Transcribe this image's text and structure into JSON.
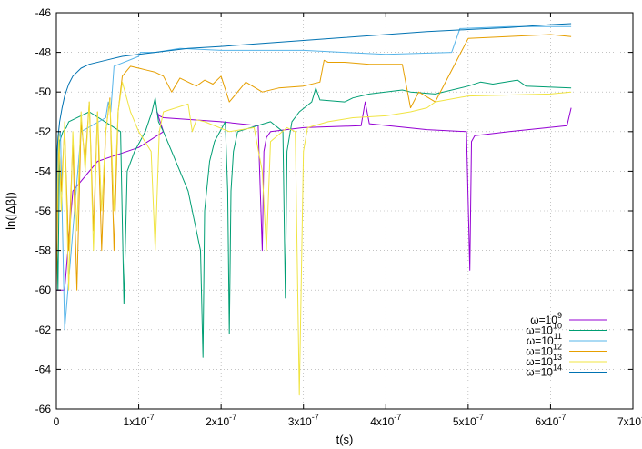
{
  "chart_data": {
    "type": "line",
    "xlabel": "t(s)",
    "ylabel": "ln(|Δβ|)",
    "xlim": [
      0,
      7e-07
    ],
    "ylim": [
      -66,
      -46
    ],
    "grid": true,
    "legend_position": "bottom-right",
    "xticks": [
      {
        "value": 0,
        "mant": "0",
        "exp": ""
      },
      {
        "value": 1e-07,
        "mant": "1x10",
        "exp": "-7"
      },
      {
        "value": 2e-07,
        "mant": "2x10",
        "exp": "-7"
      },
      {
        "value": 3e-07,
        "mant": "3x10",
        "exp": "-7"
      },
      {
        "value": 4e-07,
        "mant": "4x10",
        "exp": "-7"
      },
      {
        "value": 5e-07,
        "mant": "5x10",
        "exp": "-7"
      },
      {
        "value": 6e-07,
        "mant": "6x10",
        "exp": "-7"
      },
      {
        "value": 7e-07,
        "mant": "7x10",
        "exp": "-7"
      }
    ],
    "yticks": [
      {
        "value": -46,
        "label": "-46"
      },
      {
        "value": -48,
        "label": "-48"
      },
      {
        "value": -50,
        "label": "-50"
      },
      {
        "value": -52,
        "label": "-52"
      },
      {
        "value": -54,
        "label": "-54"
      },
      {
        "value": -56,
        "label": "-56"
      },
      {
        "value": -58,
        "label": "-58"
      },
      {
        "value": -60,
        "label": "-60"
      },
      {
        "value": -62,
        "label": "-62"
      },
      {
        "value": -64,
        "label": "-64"
      },
      {
        "value": -66,
        "label": "-66"
      }
    ],
    "series": [
      {
        "name_base": "ω=10",
        "name_exp": "9",
        "color": "#9400d3",
        "x": [
          0,
          1e-08,
          2e-08,
          5e-08,
          1e-07,
          1.3e-07,
          1.22e-07,
          1.25e-07,
          1.3e-07,
          2e-07,
          2.45e-07,
          2.5e-07,
          2.52e-07,
          2.55e-07,
          2.6e-07,
          3e-07,
          3.7e-07,
          3.75e-07,
          3.8e-07,
          4.5e-07,
          4.98e-07,
          5.02e-07,
          5.04e-07,
          5.08e-07,
          5.5e-07,
          6.2e-07,
          6.25e-07
        ],
        "y": [
          -60,
          -60,
          -55,
          -53.5,
          -52.8,
          -52,
          -51,
          -51.2,
          -51.3,
          -51.5,
          -51.7,
          -58,
          -53,
          -52.3,
          -52,
          -51.8,
          -51.7,
          -50.5,
          -51.6,
          -51.9,
          -52,
          -59,
          -52.5,
          -52.2,
          -52,
          -51.7,
          -50.8
        ]
      },
      {
        "name_base": "ω=10",
        "name_exp": "10",
        "color": "#009e73",
        "x": [
          0,
          2e-09,
          4e-09,
          8e-09,
          1.2e-08,
          1.5e-08,
          4e-08,
          7.8e-08,
          8.2e-08,
          8.6e-08,
          9.5e-08,
          1.08e-07,
          1.16e-07,
          1.2e-07,
          1.24e-07,
          1.3e-07,
          1.4e-07,
          1.6e-07,
          1.75e-07,
          1.78e-07,
          1.8e-07,
          1.86e-07,
          1.92e-07,
          2.05e-07,
          2.08e-07,
          2.1e-07,
          2.12e-07,
          2.15e-07,
          2.2e-07,
          2.6e-07,
          2.75e-07,
          2.78e-07,
          2.8e-07,
          2.86e-07,
          2.95e-07,
          3.1e-07,
          3.15e-07,
          3.2e-07,
          3.5e-07,
          3.6e-07,
          3.8e-07,
          4.2e-07,
          4.3e-07,
          4.6e-07,
          5e-07,
          5.15e-07,
          5.3e-07,
          5.6e-07,
          5.7e-07,
          6.25e-07
        ],
        "y": [
          -56,
          -60,
          -52.5,
          -52,
          -51.8,
          -51.5,
          -51,
          -52,
          -60.7,
          -54,
          -53,
          -52,
          -51,
          -50.3,
          -51.5,
          -52,
          -53,
          -55,
          -58,
          -63.4,
          -56,
          -53.5,
          -52.5,
          -51.5,
          -55,
          -62.2,
          -55,
          -53,
          -52,
          -51.5,
          -52,
          -60.4,
          -53,
          -51.5,
          -51,
          -50.5,
          -49.8,
          -50.4,
          -50.5,
          -50.3,
          -50.1,
          -49.9,
          -50,
          -50.1,
          -49.7,
          -49.5,
          -49.6,
          -49.4,
          -49.7,
          -49.8
        ]
      },
      {
        "name_base": "ω=10",
        "name_exp": "11",
        "color": "#56b4e9",
        "x": [
          0,
          2e-09,
          5e-09,
          1e-08,
          3e-08,
          6e-08,
          6.3e-08,
          6.6e-08,
          7e-08,
          1e-07,
          1.02e-07,
          1.2e-07,
          1.5e-07,
          2e-07,
          2.5e-07,
          3e-07,
          3.5e-07,
          4e-07,
          4.8e-07,
          4.9e-07,
          5.5e-07,
          6.25e-07
        ],
        "y": [
          -58,
          -52.5,
          -52,
          -62,
          -52,
          -51.3,
          -50.5,
          -51,
          -48.7,
          -48.2,
          -48,
          -48,
          -47.8,
          -47.9,
          -47.9,
          -47.9,
          -48,
          -48.1,
          -48,
          -46.8,
          -46.7,
          -46.7
        ]
      },
      {
        "name_base": "ω=10",
        "name_exp": "12",
        "color": "#e69f00",
        "x": [
          0,
          3e-09,
          6e-09,
          1e-08,
          1.5e-08,
          2e-08,
          2.5e-08,
          3e-08,
          3.5e-08,
          4e-08,
          4.5e-08,
          5e-08,
          5.5e-08,
          6e-08,
          6.5e-08,
          7e-08,
          7.5e-08,
          8e-08,
          9e-08,
          1e-07,
          1.1e-07,
          1.2e-07,
          1.3e-07,
          1.4e-07,
          1.5e-07,
          1.6e-07,
          1.7e-07,
          1.8e-07,
          1.9e-07,
          2e-07,
          2.1e-07,
          2.3e-07,
          2.5e-07,
          2.7e-07,
          3e-07,
          3.2e-07,
          3.25e-07,
          3.3e-07,
          3.5e-07,
          3.8e-07,
          4.2e-07,
          4.3e-07,
          4.4e-07,
          4.6e-07,
          5e-07,
          6e-07,
          6.25e-07
        ],
        "y": [
          -60,
          -52.5,
          -55,
          -51.8,
          -58,
          -52.5,
          -60,
          -51.5,
          -53.5,
          -50.5,
          -57,
          -51,
          -58,
          -52,
          -50.3,
          -58,
          -51,
          -49.2,
          -48.7,
          -48.8,
          -48.9,
          -49,
          -49.2,
          -50,
          -49.3,
          -49.5,
          -49.7,
          -49.4,
          -49.6,
          -49.2,
          -50.5,
          -49.5,
          -50,
          -49.8,
          -49.7,
          -49.5,
          -48.4,
          -48.5,
          -48.5,
          -48.6,
          -48.6,
          -50.8,
          -50,
          -50.5,
          -47.3,
          -47.1,
          -47.2
        ]
      },
      {
        "name_base": "ω=10",
        "name_exp": "13",
        "color": "#f0e442",
        "x": [
          0,
          3e-09,
          6e-09,
          1e-08,
          1.5e-08,
          2e-08,
          2.5e-08,
          3e-08,
          3.5e-08,
          4e-08,
          4.5e-08,
          5e-08,
          5.5e-08,
          6e-08,
          6.5e-08,
          7e-08,
          7.5e-08,
          8e-08,
          9e-08,
          1e-07,
          1.15e-07,
          1.2e-07,
          1.25e-07,
          1.3e-07,
          1.6e-07,
          1.65e-07,
          1.7e-07,
          1.8e-07,
          2.1e-07,
          2.4e-07,
          2.5e-07,
          2.55e-07,
          2.6e-07,
          2.8e-07,
          2.9e-07,
          2.95e-07,
          3e-07,
          3.05e-07,
          3.3e-07,
          3.6e-07,
          4e-07,
          4.3e-07,
          4.5e-07,
          4.6e-07,
          5e-07,
          6e-07,
          6.25e-07
        ],
        "y": [
          -58,
          -52,
          -56,
          -51.5,
          -60,
          -52,
          -57,
          -51,
          -54,
          -50.5,
          -58,
          -51,
          -56,
          -52,
          -50.4,
          -56,
          -51,
          -49.5,
          -51,
          -52,
          -53,
          -58,
          -52,
          -51,
          -50.6,
          -52,
          -51.4,
          -51.5,
          -52,
          -51.8,
          -54,
          -58,
          -52.5,
          -51.8,
          -52,
          -65.3,
          -53,
          -51.8,
          -51.5,
          -51.3,
          -51.2,
          -51,
          -50.8,
          -50.5,
          -50.2,
          -50.1,
          -50
        ]
      },
      {
        "name_base": "ω=10",
        "name_exp": "14",
        "color": "#0072b2",
        "x": [
          0,
          1e-09,
          2e-09,
          4e-09,
          7e-09,
          1e-08,
          1.5e-08,
          2e-08,
          3e-08,
          4e-08,
          6e-08,
          8e-08,
          1e-07,
          1.3e-07,
          1.6e-07,
          2e-07,
          2.5e-07,
          3e-07,
          3.5e-07,
          4e-07,
          4.5e-07,
          5e-07,
          5.5e-07,
          6e-07,
          6.25e-07
        ],
        "y": [
          -55,
          -53,
          -52.3,
          -51.5,
          -50.8,
          -50.2,
          -49.6,
          -49.2,
          -48.8,
          -48.6,
          -48.4,
          -48.2,
          -48.1,
          -47.95,
          -47.8,
          -47.7,
          -47.55,
          -47.4,
          -47.25,
          -47.1,
          -46.95,
          -46.85,
          -46.75,
          -46.6,
          -46.55
        ]
      }
    ]
  }
}
